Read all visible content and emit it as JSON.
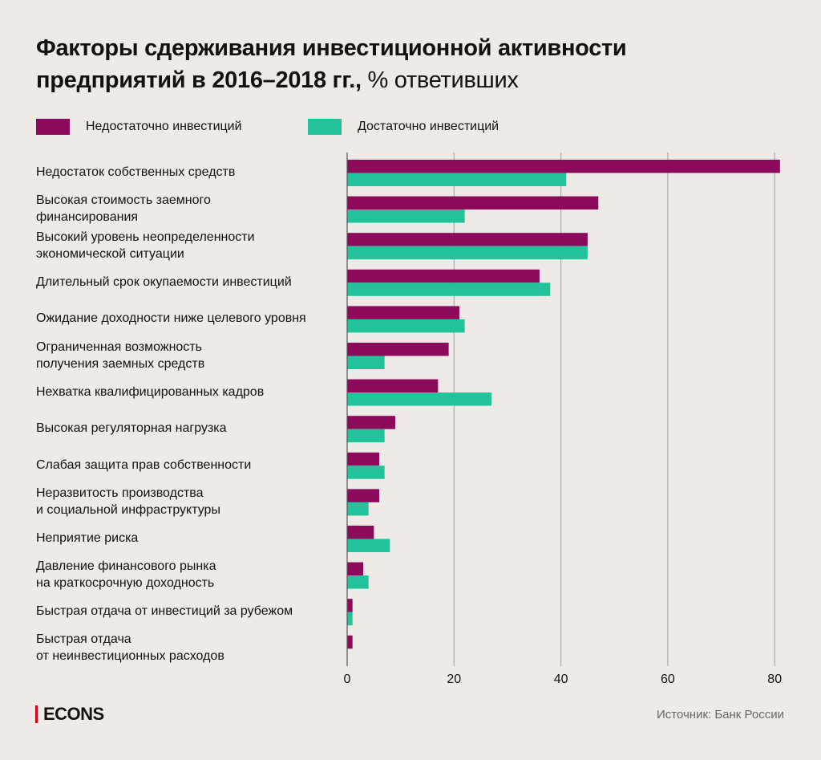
{
  "chart_data": {
    "type": "bar",
    "orientation": "horizontal",
    "title": "Факторы сдерживания инвестиционной активности предприятий в 2016–2018 гг.,",
    "title_line1": "Факторы сдерживания инвестиционной активности",
    "title_line2": "предприятий в 2016–2018 гг.,",
    "unit": "% ответивших",
    "categories": [
      [
        "Недостаток собственных средств"
      ],
      [
        "Высокая стоимость заемного",
        "финансирования"
      ],
      [
        "Высокий уровень неопределенности",
        "экономической ситуации"
      ],
      [
        "Длительный срок окупаемости инвестиций"
      ],
      [
        "Ожидание доходности ниже целевого уровня"
      ],
      [
        "Ограниченная возможность",
        "получения заемных средств"
      ],
      [
        "Нехватка квалифицированных кадров"
      ],
      [
        "Высокая регуляторная нагрузка"
      ],
      [
        "Слабая защита прав собственности"
      ],
      [
        "Неразвитость производства",
        "и социальной инфраструктуры"
      ],
      [
        "Неприятие риска"
      ],
      [
        "Давление финансового рынка",
        "на краткосрочную доходность"
      ],
      [
        "Быстрая отдача от инвестиций за рубежом"
      ],
      [
        "Быстрая отдача",
        "от неинвестиционных расходов"
      ]
    ],
    "series": [
      {
        "name": "Недостаточно инвестиций",
        "color": "#8b0a5c",
        "values": [
          81,
          47,
          45,
          36,
          21,
          19,
          17,
          9,
          6,
          6,
          5,
          3,
          1,
          1
        ]
      },
      {
        "name": "Достаточно инвестиций",
        "color": "#22c39a",
        "values": [
          41,
          22,
          45,
          38,
          22,
          7,
          27,
          7,
          7,
          4,
          8,
          4,
          1,
          0
        ]
      }
    ],
    "xlim": [
      0,
      81
    ],
    "xticks": [
      "0",
      "20",
      "40",
      "60",
      "80"
    ],
    "grid": true,
    "legend": "top-left"
  },
  "footer": {
    "brand": "ECONS",
    "source": "Источник: Банк России"
  }
}
